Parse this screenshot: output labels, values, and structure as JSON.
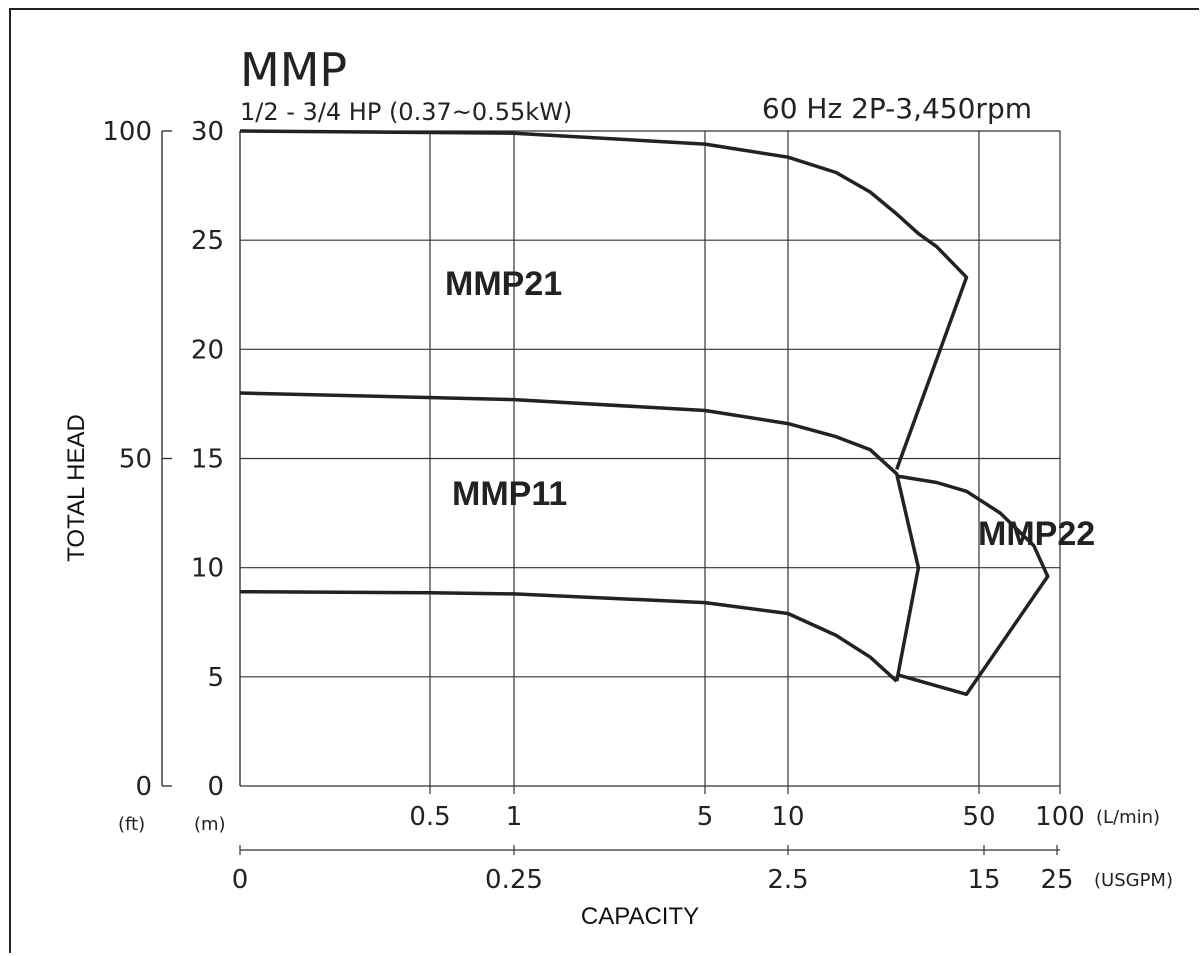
{
  "chart_data": {
    "type": "line",
    "title": "MMP",
    "subtitle": "1/2 - 3/4 HP (0.37~0.55kW)",
    "spec": "60 Hz 2P-3,450rpm",
    "ylabel": "TOTAL HEAD",
    "xlabel": "CAPACITY",
    "y_unit_ft": "(ft)",
    "y_unit_m": "(m)",
    "x_unit_lmin": "(L/min)",
    "x_unit_usgpm": "(USGPM)",
    "ylim_m": [
      0,
      30
    ],
    "ylim_ft": [
      0,
      100
    ],
    "y_ticks_m": [
      "0",
      "5",
      "10",
      "15",
      "20",
      "25",
      "30"
    ],
    "y_ticks_ft": [
      "0",
      "50",
      "100"
    ],
    "x_ticks_lmin": [
      "0.5",
      "1",
      "5",
      "10",
      "50",
      "100"
    ],
    "x_ticks_usgpm": [
      "0",
      "0.25",
      "2.5",
      "15",
      "25"
    ],
    "x_scale": "log",
    "grid": true,
    "series": [
      {
        "name": "MMP21",
        "x": [
          0,
          1,
          5,
          10,
          15,
          20,
          25,
          30,
          35,
          45,
          25
        ],
        "y": [
          30,
          29.9,
          29.4,
          28.8,
          28.1,
          27.2,
          26.2,
          25.3,
          24.7,
          23.3,
          14.5
        ]
      },
      {
        "name": "MMP11",
        "x": [
          0,
          1,
          5,
          10,
          15,
          20,
          25,
          30,
          25
        ],
        "y": [
          18,
          17.7,
          17.2,
          16.6,
          16,
          15.4,
          14.3,
          10,
          4.8
        ]
      },
      {
        "name": "MMP22",
        "x": [
          25,
          35,
          45,
          60,
          80,
          90,
          45,
          25
        ],
        "y": [
          14.2,
          13.9,
          13.5,
          12.5,
          11,
          9.6,
          4.2,
          5.1
        ]
      },
      {
        "name": "",
        "x": [
          0,
          0.5,
          1,
          5,
          10,
          15,
          20,
          25
        ],
        "y": [
          8.9,
          8.85,
          8.8,
          8.4,
          7.9,
          6.9,
          5.9,
          4.8
        ]
      }
    ]
  }
}
